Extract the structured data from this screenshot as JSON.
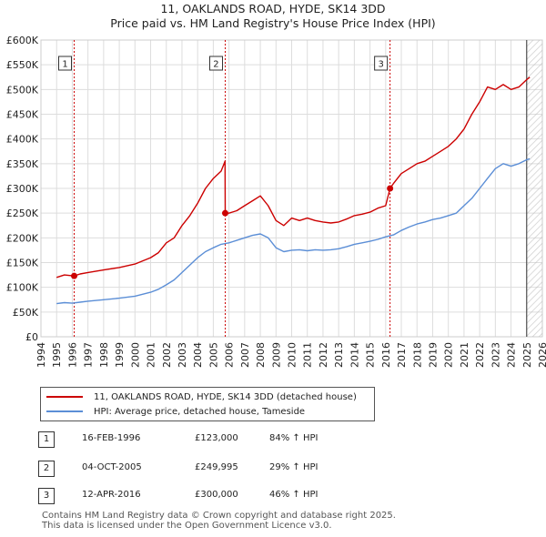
{
  "chart_data": {
    "type": "line",
    "title": "11, OAKLANDS ROAD, HYDE, SK14 3DD",
    "subtitle": "Price paid vs. HM Land Registry's House Price Index (HPI)",
    "xlabel": "",
    "ylabel": "",
    "xlim": [
      1994,
      2026
    ],
    "ylim": [
      0,
      600000
    ],
    "x_ticks": [
      1994,
      1995,
      1996,
      1997,
      1998,
      1999,
      2000,
      2001,
      2002,
      2003,
      2004,
      2005,
      2006,
      2007,
      2008,
      2009,
      2010,
      2011,
      2012,
      2013,
      2014,
      2015,
      2016,
      2017,
      2018,
      2019,
      2020,
      2021,
      2022,
      2023,
      2024,
      2025,
      2026
    ],
    "y_ticks": [
      0,
      50000,
      100000,
      150000,
      200000,
      250000,
      300000,
      350000,
      400000,
      450000,
      500000,
      550000,
      600000
    ],
    "y_tick_labels": [
      "£0",
      "£50K",
      "£100K",
      "£150K",
      "£200K",
      "£250K",
      "£300K",
      "£350K",
      "£400K",
      "£450K",
      "£500K",
      "£550K",
      "£600K"
    ],
    "grid": true,
    "series": [
      {
        "name": "11, OAKLANDS ROAD, HYDE, SK14 3DD (detached house)",
        "color": "#cc0000",
        "x": [
          1995.0,
          1995.5,
          1996.12,
          1996.5,
          1997.0,
          1998.0,
          1999.0,
          2000.0,
          2001.0,
          2001.5,
          2002.0,
          2002.5,
          2003.0,
          2003.5,
          2004.0,
          2004.5,
          2005.0,
          2005.5,
          2005.75,
          2005.76,
          2006.0,
          2006.5,
          2007.0,
          2007.5,
          2008.0,
          2008.5,
          2009.0,
          2009.5,
          2010.0,
          2010.5,
          2011.0,
          2011.5,
          2012.0,
          2012.5,
          2013.0,
          2013.5,
          2014.0,
          2014.5,
          2015.0,
          2015.5,
          2016.0,
          2016.28,
          2016.5,
          2017.0,
          2017.5,
          2018.0,
          2018.5,
          2019.0,
          2019.5,
          2020.0,
          2020.5,
          2021.0,
          2021.5,
          2022.0,
          2022.5,
          2023.0,
          2023.5,
          2024.0,
          2024.5,
          2025.0,
          2025.2
        ],
        "values": [
          120000,
          125000,
          123000,
          127000,
          130000,
          135000,
          140000,
          147000,
          160000,
          170000,
          190000,
          200000,
          225000,
          245000,
          270000,
          300000,
          320000,
          335000,
          355000,
          249995,
          250000,
          255000,
          265000,
          275000,
          285000,
          265000,
          235000,
          225000,
          240000,
          235000,
          240000,
          235000,
          232000,
          230000,
          232000,
          238000,
          245000,
          248000,
          252000,
          260000,
          265000,
          300000,
          310000,
          330000,
          340000,
          350000,
          355000,
          365000,
          375000,
          385000,
          400000,
          420000,
          450000,
          475000,
          505000,
          500000,
          510000,
          500000,
          505000,
          520000,
          525000
        ]
      },
      {
        "name": "HPI: Average price, detached house, Tameside",
        "color": "#5b8ed6",
        "x": [
          1995.0,
          1995.5,
          1996.0,
          1996.5,
          1997.0,
          1998.0,
          1999.0,
          2000.0,
          2001.0,
          2001.5,
          2002.0,
          2002.5,
          2003.0,
          2003.5,
          2004.0,
          2004.5,
          2005.0,
          2005.5,
          2006.0,
          2006.5,
          2007.0,
          2007.5,
          2008.0,
          2008.5,
          2009.0,
          2009.5,
          2010.0,
          2010.5,
          2011.0,
          2011.5,
          2012.0,
          2012.5,
          2013.0,
          2013.5,
          2014.0,
          2014.5,
          2015.0,
          2015.5,
          2016.0,
          2016.5,
          2017.0,
          2017.5,
          2018.0,
          2018.5,
          2019.0,
          2019.5,
          2020.0,
          2020.5,
          2021.0,
          2021.5,
          2022.0,
          2022.5,
          2023.0,
          2023.5,
          2024.0,
          2024.5,
          2025.0,
          2025.2
        ],
        "values": [
          67000,
          69000,
          68000,
          70000,
          72000,
          75000,
          78000,
          82000,
          90000,
          96000,
          105000,
          115000,
          130000,
          145000,
          160000,
          172000,
          180000,
          187000,
          190000,
          195000,
          200000,
          205000,
          208000,
          200000,
          180000,
          172000,
          175000,
          176000,
          174000,
          176000,
          175000,
          176000,
          178000,
          182000,
          187000,
          190000,
          193000,
          197000,
          202000,
          206000,
          215000,
          222000,
          228000,
          232000,
          237000,
          240000,
          245000,
          250000,
          265000,
          280000,
          300000,
          320000,
          340000,
          350000,
          345000,
          350000,
          358000,
          360000
        ]
      }
    ],
    "markers": [
      {
        "label": "1",
        "x": 1996.12,
        "y": 123000
      },
      {
        "label": "2",
        "x": 2005.76,
        "y": 249995
      },
      {
        "label": "3",
        "x": 2016.28,
        "y": 300000
      }
    ]
  },
  "legend": {
    "entries": [
      {
        "label": "11, OAKLANDS ROAD, HYDE, SK14 3DD (detached house)",
        "color": "#cc0000"
      },
      {
        "label": "HPI: Average price, detached house, Tameside",
        "color": "#5b8ed6"
      }
    ]
  },
  "transactions": [
    {
      "num": "1",
      "date": "16-FEB-1996",
      "price": "£123,000",
      "hpi": "84% ↑ HPI"
    },
    {
      "num": "2",
      "date": "04-OCT-2005",
      "price": "£249,995",
      "hpi": "29% ↑ HPI"
    },
    {
      "num": "3",
      "date": "12-APR-2016",
      "price": "£300,000",
      "hpi": "46% ↑ HPI"
    }
  ],
  "footer": {
    "line1": "Contains HM Land Registry data © Crown copyright and database right 2025.",
    "line2": "This data is licensed under the Open Government Licence v3.0."
  }
}
